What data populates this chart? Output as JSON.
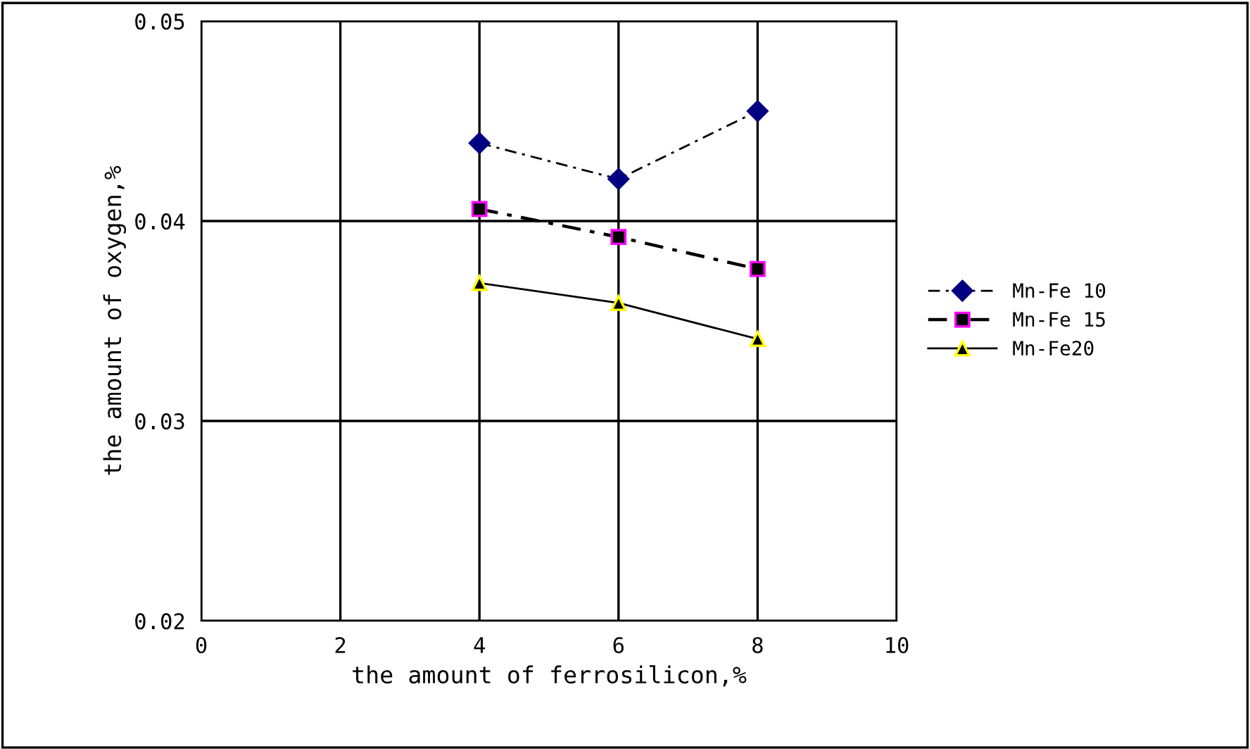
{
  "chart_data": {
    "type": "line",
    "xlabel": "the amount of ferrosilicon,%",
    "ylabel": "the amount of oxygen,%",
    "x": [
      4,
      6,
      8
    ],
    "series": [
      {
        "name": "Mn-Fe 10",
        "color": "#000080",
        "marker": "diamond",
        "line_style": "dashed",
        "values": [
          0.0439,
          0.0421,
          0.0455
        ]
      },
      {
        "name": "Mn-Fe 15",
        "color": "#ff00ff",
        "marker": "square",
        "line_style": "dashed",
        "values": [
          0.0406,
          0.0392,
          0.0376
        ]
      },
      {
        "name": "Mn-Fe20",
        "color": "#ffff00",
        "marker": "triangle",
        "line_style": "solid",
        "values": [
          0.0369,
          0.0359,
          0.0341
        ]
      }
    ],
    "xlim": [
      0,
      10
    ],
    "xticks": [
      0,
      2,
      4,
      6,
      8,
      10
    ],
    "ylim": [
      0.02,
      0.05
    ],
    "yticks": [
      {
        "value": 0.02,
        "label": "0.02"
      },
      {
        "value": 0.03,
        "label": "0.03"
      },
      {
        "value": 0.04,
        "label": "0.04"
      },
      {
        "value": 0.05,
        "label": "0.05"
      }
    ],
    "grid": true,
    "legend": "right"
  }
}
